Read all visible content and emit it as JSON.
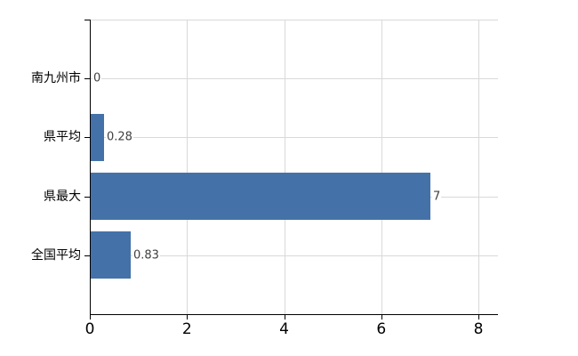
{
  "chart_data": {
    "type": "bar",
    "orientation": "horizontal",
    "title": "",
    "xlabel": "",
    "ylabel": "",
    "categories": [
      "南九州市",
      "県平均",
      "県最大",
      "全国平均"
    ],
    "values": [
      0,
      0.28,
      7,
      0.83
    ],
    "value_labels": [
      "0",
      "0.28",
      "7",
      "0.83"
    ],
    "x_tick_labels": [
      "0",
      "2",
      "4",
      "6",
      "8"
    ],
    "x_tick_values": [
      0,
      2,
      4,
      6,
      8
    ],
    "xlim": [
      0,
      8.4
    ],
    "grid": true,
    "legend_position": "none",
    "colors": {
      "bar": "#4472a8",
      "gridline": "#d9d9d9",
      "axis": "#000000",
      "category_label": "#000000",
      "value_label": "#404040",
      "background": "#ffffff"
    }
  }
}
